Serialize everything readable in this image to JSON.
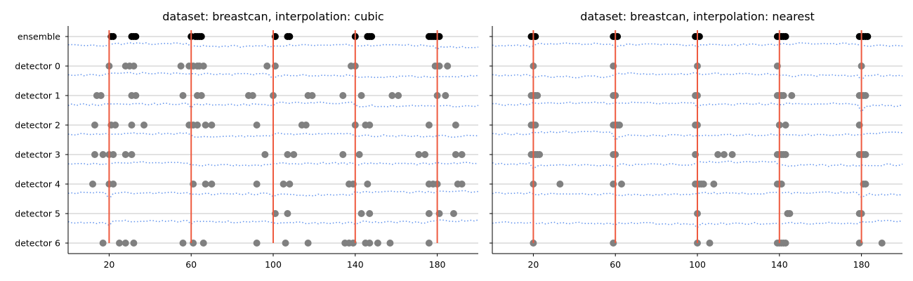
{
  "chart_data": [
    {
      "type": "scatter",
      "title": "dataset: breastcan, interpolation: cubic",
      "xlabel": "",
      "ylabel": "",
      "xlim": [
        0,
        200
      ],
      "xticks": [
        20,
        60,
        100,
        140,
        180
      ],
      "categories": [
        "ensemble",
        "detector 0",
        "detector 1",
        "detector 2",
        "detector 3",
        "detector 4",
        "detector 5",
        "detector 6"
      ],
      "grid": "horizontal",
      "change_points": [
        20,
        60,
        100,
        140,
        180
      ],
      "detections": {
        "ensemble": [
          21,
          22,
          31,
          32,
          33,
          60,
          62,
          63,
          64,
          65,
          101,
          107,
          108,
          140,
          146,
          147,
          148,
          176,
          177,
          178,
          179,
          180,
          181
        ],
        "detector 0": [
          20,
          28,
          30,
          32,
          55,
          59,
          61,
          63,
          64,
          66,
          97,
          101,
          138,
          140,
          179,
          181,
          185
        ],
        "detector 1": [
          14,
          16,
          31,
          33,
          56,
          63,
          65,
          88,
          90,
          100,
          117,
          119,
          134,
          143,
          158,
          161,
          180,
          184
        ],
        "detector 2": [
          13,
          21,
          23,
          31,
          37,
          59,
          61,
          63,
          67,
          70,
          92,
          114,
          116,
          140,
          145,
          147,
          176,
          189
        ],
        "detector 3": [
          13,
          17,
          20,
          22,
          28,
          31,
          96,
          107,
          110,
          134,
          142,
          171,
          174,
          189,
          192
        ],
        "detector 4": [
          12,
          20,
          22,
          61,
          67,
          70,
          92,
          105,
          108,
          137,
          139,
          146,
          176,
          178,
          180,
          190,
          192
        ],
        "detector 5": [
          101,
          107,
          143,
          147,
          176,
          181,
          188
        ],
        "detector 6": [
          17,
          25,
          28,
          32,
          56,
          61,
          66,
          92,
          106,
          117,
          135,
          137,
          139,
          145,
          147,
          151,
          157,
          176
        ]
      }
    },
    {
      "type": "scatter",
      "title": "dataset: breastcan, interpolation: nearest",
      "xlabel": "",
      "ylabel": "",
      "xlim": [
        0,
        200
      ],
      "xticks": [
        20,
        60,
        100,
        140,
        180
      ],
      "categories": [
        "ensemble",
        "detector 0",
        "detector 1",
        "detector 2",
        "detector 3",
        "detector 4",
        "detector 5",
        "detector 6"
      ],
      "grid": "horizontal",
      "change_points": [
        20,
        60,
        100,
        140,
        180
      ],
      "detections": {
        "ensemble": [
          19,
          20,
          21,
          59,
          60,
          61,
          99,
          100,
          101,
          139,
          140,
          141,
          142,
          143,
          179,
          180,
          181,
          182,
          183
        ],
        "detector 0": [
          20,
          59,
          100,
          139,
          180
        ],
        "detector 1": [
          19,
          20,
          21,
          22,
          59,
          60,
          99,
          100,
          139,
          140,
          141,
          142,
          146,
          179,
          180,
          181,
          182
        ],
        "detector 2": [
          19,
          20,
          21,
          59,
          60,
          61,
          62,
          99,
          100,
          140,
          143,
          179
        ],
        "detector 3": [
          19,
          20,
          21,
          22,
          23,
          59,
          60,
          99,
          110,
          113,
          117,
          139,
          140,
          141,
          142,
          143,
          179,
          180,
          181,
          182
        ],
        "detector 4": [
          20,
          33,
          59,
          63,
          99,
          100,
          101,
          102,
          103,
          108,
          139,
          140,
          141,
          181,
          182
        ],
        "detector 5": [
          100,
          144,
          145,
          179,
          180
        ],
        "detector 6": [
          20,
          59,
          100,
          106,
          139,
          140,
          141,
          142,
          143,
          179,
          190
        ]
      }
    }
  ]
}
